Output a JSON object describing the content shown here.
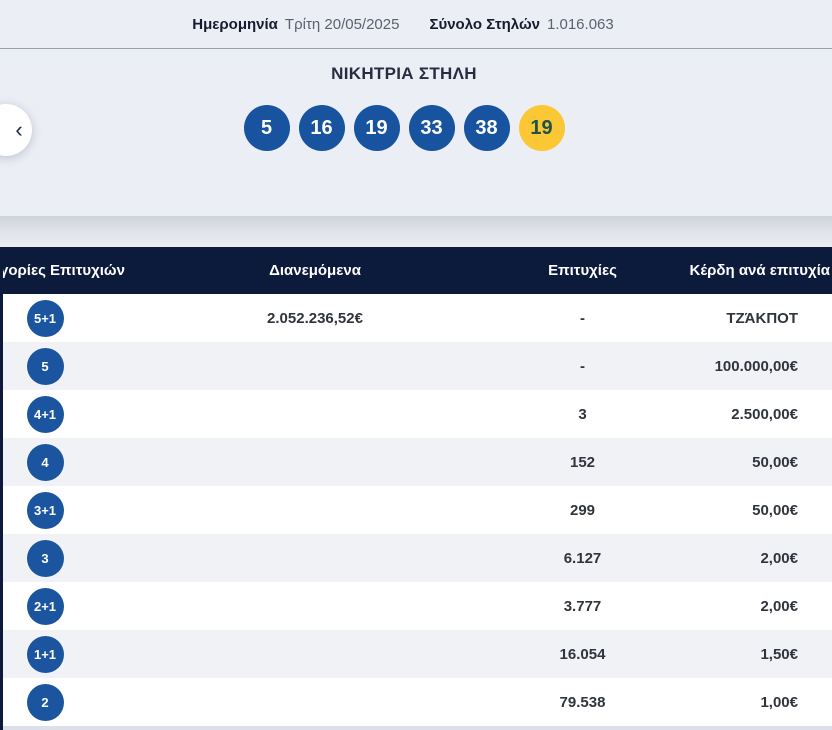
{
  "meta": {
    "date_label": "Ημερομηνία",
    "date_value": "Τρίτη 20/05/2025",
    "columns_label": "Σύνολο Στηλών",
    "columns_value": "1.016.063"
  },
  "winning": {
    "title": "ΝΙΚΗΤΡΙΑ ΣΤΗΛΗ",
    "numbers": [
      "5",
      "16",
      "19",
      "33",
      "38"
    ],
    "joker": "19"
  },
  "icons": {
    "chevron_left": "‹"
  },
  "table": {
    "headers": {
      "category": "γορίες Επιτυχιών",
      "distributed": "Διανεμόμενα",
      "winners": "Επιτυχίες",
      "prize": "Κέρδη ανά επιτυχία"
    },
    "rows": [
      {
        "tier": "5+1",
        "distributed": "2.052.236,52€",
        "winners": "-",
        "prize": "ΤΖΆΚΠΟΤ"
      },
      {
        "tier": "5",
        "distributed": "",
        "winners": "-",
        "prize": "100.000,00€"
      },
      {
        "tier": "4+1",
        "distributed": "",
        "winners": "3",
        "prize": "2.500,00€"
      },
      {
        "tier": "4",
        "distributed": "",
        "winners": "152",
        "prize": "50,00€"
      },
      {
        "tier": "3+1",
        "distributed": "",
        "winners": "299",
        "prize": "50,00€"
      },
      {
        "tier": "3",
        "distributed": "",
        "winners": "6.127",
        "prize": "2,00€"
      },
      {
        "tier": "2+1",
        "distributed": "",
        "winners": "3.777",
        "prize": "2,00€"
      },
      {
        "tier": "1+1",
        "distributed": "",
        "winners": "16.054",
        "prize": "1,50€"
      },
      {
        "tier": "2",
        "distributed": "",
        "winners": "79.538",
        "prize": "1,00€"
      }
    ]
  },
  "colors": {
    "navy": "#0c1a3c",
    "ball_blue": "#17539e",
    "badge_blue": "#1b55a0",
    "joker_yellow": "#fbc734",
    "joker_text": "#1d5348",
    "panel_bg": "#ebeef5",
    "alt_row_bg": "#f0f2f6"
  }
}
